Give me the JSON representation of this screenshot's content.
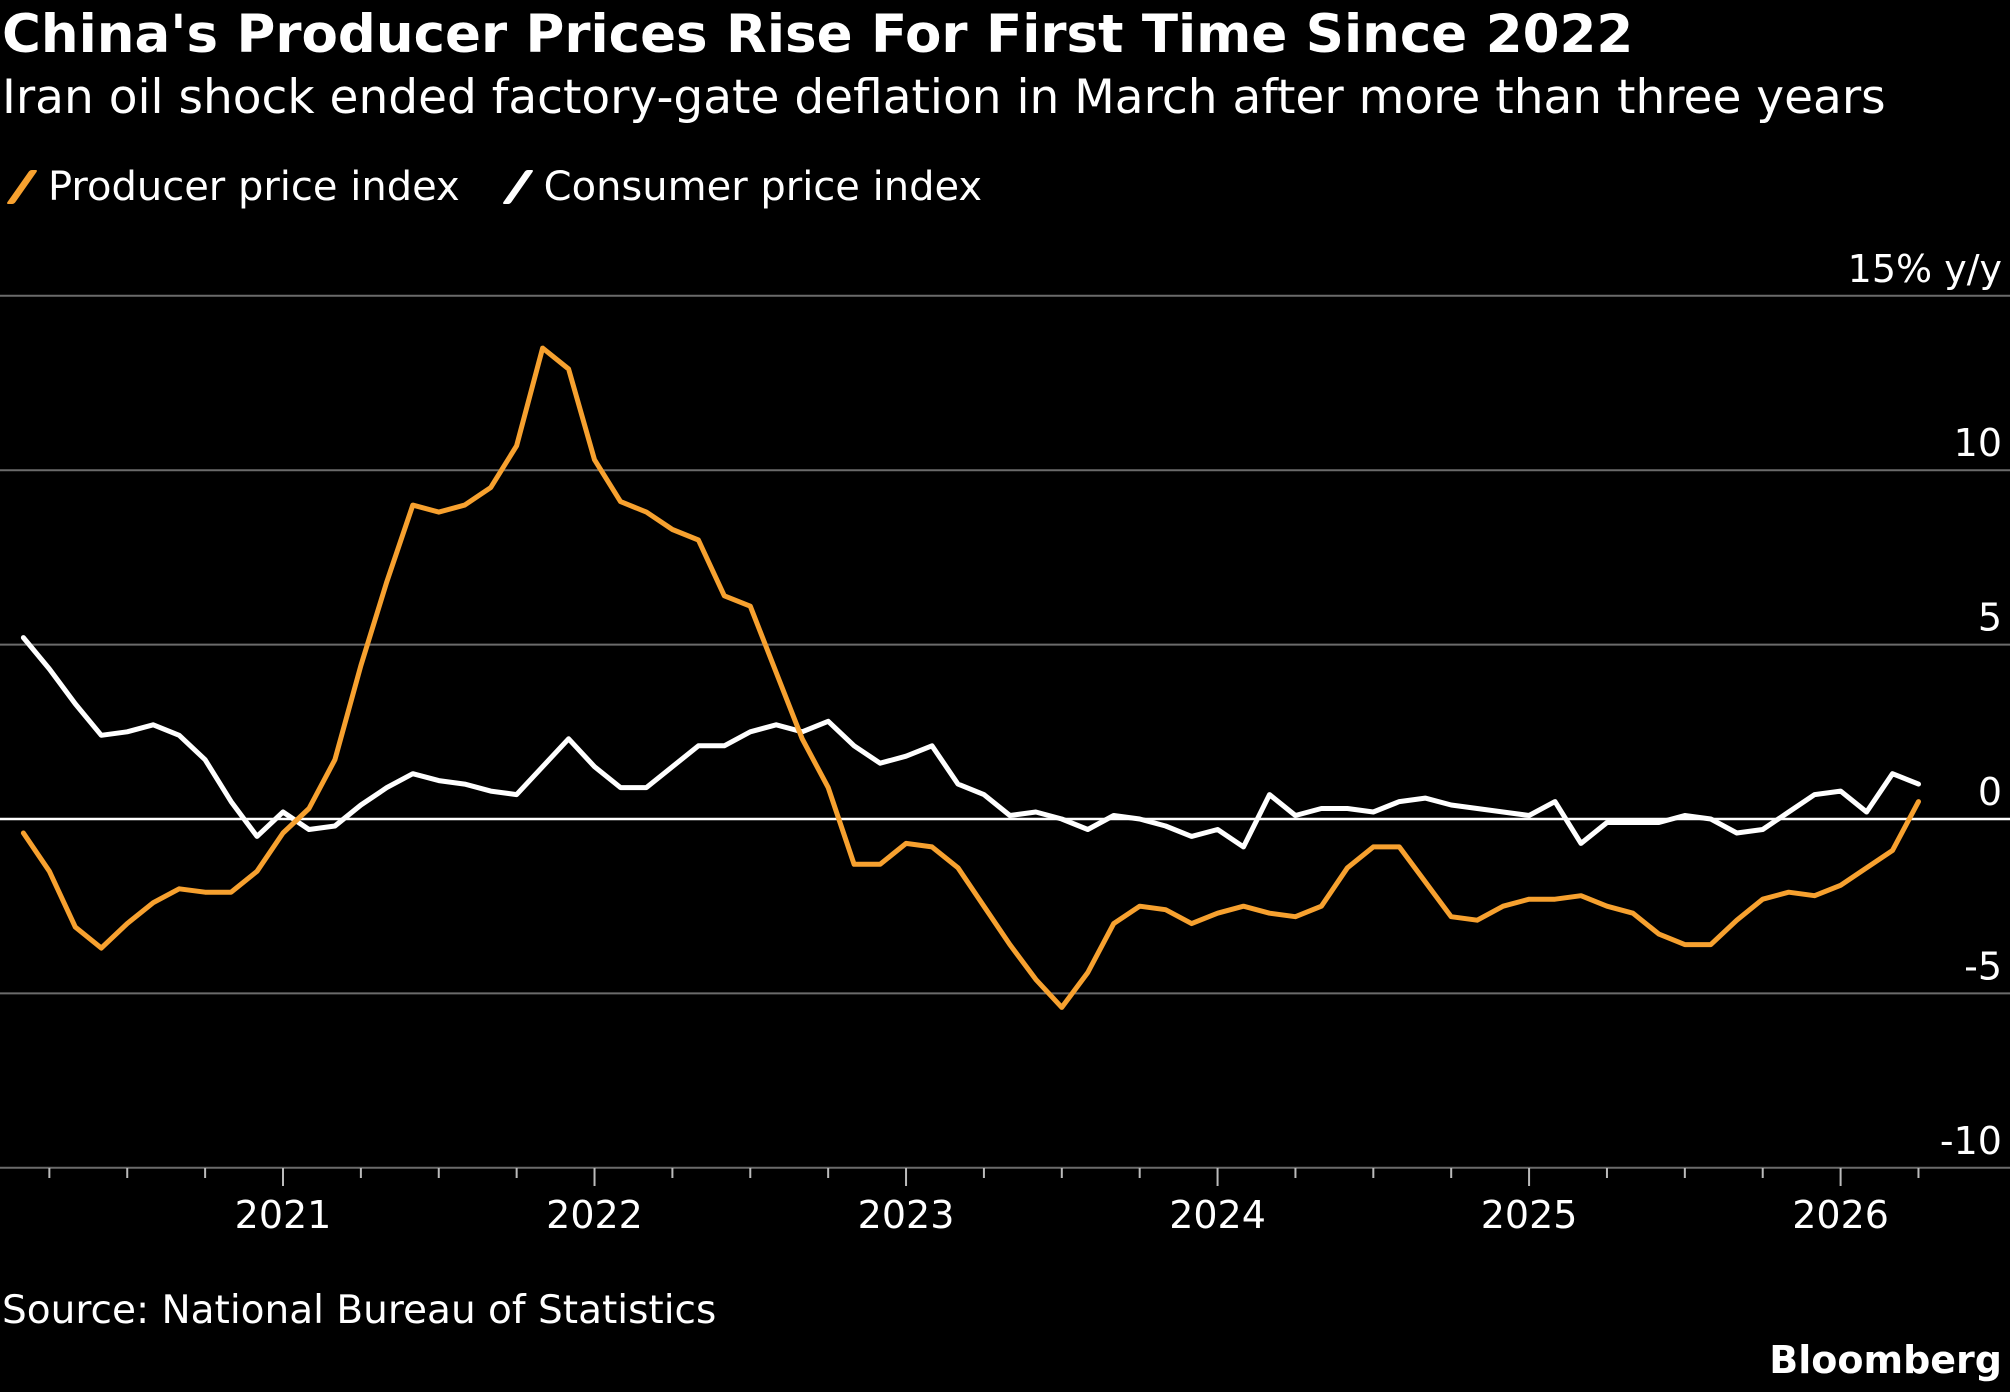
{
  "title": "China's Producer Prices Rise For First Time Since 2022",
  "subtitle": "Iran oil shock ended factory-gate deflation in March after more than three years",
  "source": "Source: National Bureau of Statistics",
  "brand": "Bloomberg",
  "chart_data": {
    "type": "line",
    "title": "China's Producer Prices Rise For First Time Since 2022",
    "ylabel": "% y/y",
    "ylim": [
      -10,
      15
    ],
    "yticks": [
      15,
      10,
      5,
      0,
      -5,
      -10
    ],
    "ytick_labels": [
      "15% y/y",
      "10",
      "5",
      "0",
      "-5",
      "-10"
    ],
    "xtick_labels": [
      "2021",
      "2022",
      "2023",
      "2024",
      "2025",
      "2026"
    ],
    "x_start": "2020-02",
    "x_end": "2026-03",
    "grid": true,
    "legend_position": "top-left",
    "series": [
      {
        "name": "Producer price index",
        "color": "#f7a12f",
        "values": [
          -0.4,
          -1.5,
          -3.1,
          -3.7,
          -3.0,
          -2.4,
          -2.0,
          -2.1,
          -2.1,
          -1.5,
          -0.4,
          0.3,
          1.7,
          4.4,
          6.8,
          9.0,
          8.8,
          9.0,
          9.5,
          10.7,
          13.5,
          12.9,
          10.3,
          9.1,
          8.8,
          8.3,
          8.0,
          6.4,
          6.1,
          4.2,
          2.3,
          0.9,
          -1.3,
          -1.3,
          -0.7,
          -0.8,
          -1.4,
          -2.5,
          -3.6,
          -4.6,
          -5.4,
          -4.4,
          -3.0,
          -2.5,
          -2.6,
          -3.0,
          -2.7,
          -2.5,
          -2.7,
          -2.8,
          -2.5,
          -1.4,
          -0.8,
          -0.8,
          -1.8,
          -2.8,
          -2.9,
          -2.5,
          -2.3,
          -2.3,
          -2.2,
          -2.5,
          -2.7,
          -3.3,
          -3.6,
          -3.6,
          -2.9,
          -2.3,
          -2.1,
          -2.2,
          -1.9,
          -1.4,
          -0.9,
          0.5
        ]
      },
      {
        "name": "Consumer price index",
        "color": "#ffffff",
        "values": [
          5.2,
          4.3,
          3.3,
          2.4,
          2.5,
          2.7,
          2.4,
          1.7,
          0.5,
          -0.5,
          0.2,
          -0.3,
          -0.2,
          0.4,
          0.9,
          1.3,
          1.1,
          1.0,
          0.8,
          0.7,
          1.5,
          2.3,
          1.5,
          0.9,
          0.9,
          1.5,
          2.1,
          2.1,
          2.5,
          2.7,
          2.5,
          2.8,
          2.1,
          1.6,
          1.8,
          2.1,
          1.0,
          0.7,
          0.1,
          0.2,
          0.0,
          -0.3,
          0.1,
          0.0,
          -0.2,
          -0.5,
          -0.3,
          -0.8,
          0.7,
          0.1,
          0.3,
          0.3,
          0.2,
          0.5,
          0.6,
          0.4,
          0.3,
          0.2,
          0.1,
          0.5,
          -0.7,
          -0.1,
          -0.1,
          -0.1,
          0.1,
          0.0,
          -0.4,
          -0.3,
          0.2,
          0.7,
          0.8,
          0.2,
          1.3,
          1.0
        ]
      }
    ]
  }
}
